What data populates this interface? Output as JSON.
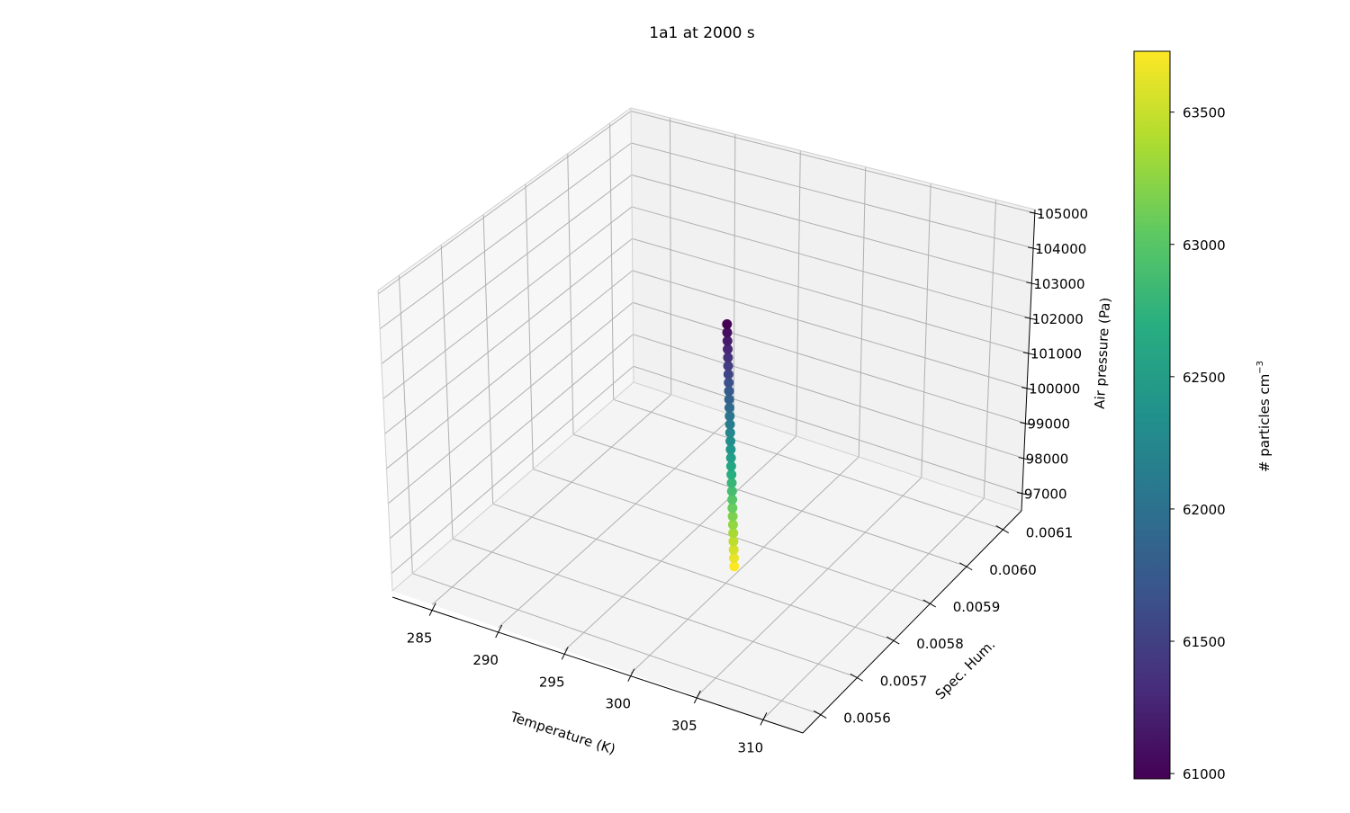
{
  "chart_data": {
    "type": "scatter",
    "projection": "3d",
    "title": "1a1 at 2000 s",
    "xlabel": "Temperature (K)",
    "ylabel": "Spec. Hum.",
    "zlabel": "Air pressure (Pa)",
    "x_ticks": [
      "285",
      "290",
      "295",
      "300",
      "305",
      "310"
    ],
    "y_ticks": [
      "0.0056",
      "0.0057",
      "0.0058",
      "0.0059",
      "0.0060",
      "0.0061"
    ],
    "z_ticks": [
      "97000",
      "98000",
      "99000",
      "100000",
      "101000",
      "102000",
      "103000",
      "104000",
      "105000"
    ],
    "xlim": [
      282,
      313
    ],
    "ylim": [
      0.00555,
      0.00615
    ],
    "zlim": [
      96500,
      105100
    ],
    "grid": true,
    "colormap": "viridis",
    "colorbar": {
      "label": "# particles cm",
      "label_superscript": "−3",
      "ticks": [
        "61000",
        "61500",
        "62000",
        "62500",
        "63000",
        "63500"
      ],
      "range": [
        60980,
        63730
      ]
    },
    "points": {
      "x": 298.7,
      "y": 0.00585,
      "z": [
        96400,
        96650,
        96900,
        97150,
        97400,
        97650,
        97900,
        98150,
        98400,
        98650,
        98900,
        99150,
        99400,
        99650,
        99900,
        100150,
        100400,
        100650,
        100900,
        101150,
        101400,
        101650,
        101900,
        102150,
        102400,
        102650,
        102900,
        103150,
        103400,
        103650
      ],
      "color_value": [
        63730,
        63640,
        63550,
        63460,
        63360,
        63270,
        63180,
        63080,
        62990,
        62890,
        62800,
        62700,
        62610,
        62510,
        62420,
        62320,
        62230,
        62130,
        62040,
        61940,
        61850,
        61750,
        61660,
        61560,
        61470,
        61370,
        61280,
        61180,
        61090,
        60990
      ]
    }
  }
}
